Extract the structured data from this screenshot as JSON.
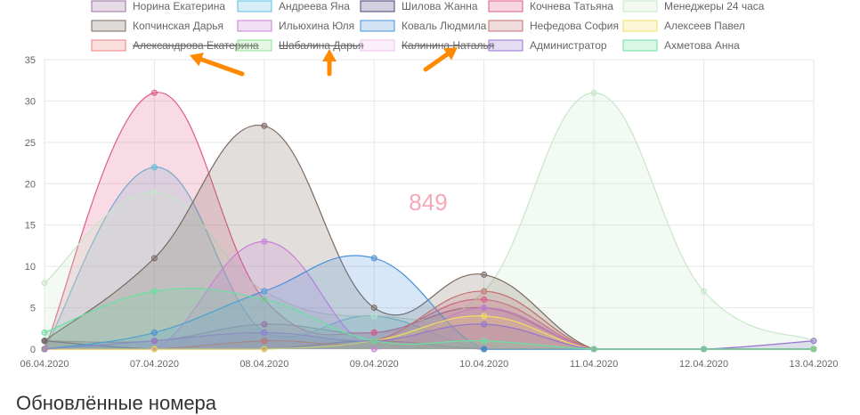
{
  "section_title": "Обновлённые номера",
  "chart_data": {
    "type": "area",
    "title": "",
    "xlabel": "",
    "ylabel": "",
    "ylim": [
      0,
      35
    ],
    "yticks": [
      0,
      5,
      10,
      15,
      20,
      25,
      30,
      35
    ],
    "grid": true,
    "legend_position": "top",
    "center_label": "849",
    "categories": [
      "06.04.2020",
      "07.04.2020",
      "08.04.2020",
      "09.04.2020",
      "10.04.2020",
      "11.04.2020",
      "12.04.2020",
      "13.04.2020"
    ],
    "series": [
      {
        "name": "Норина Екатерина",
        "hidden": false,
        "values": [
          1,
          1,
          3,
          2,
          5,
          0,
          0,
          0
        ],
        "color": "#9b6fa0"
      },
      {
        "name": "Андреева Яна",
        "hidden": false,
        "values": [
          0,
          22,
          2,
          4,
          0,
          0,
          0,
          0
        ],
        "color": "#5bc0de"
      },
      {
        "name": "Шилова Жанна",
        "hidden": false,
        "values": [
          1,
          0,
          0,
          1,
          0,
          0,
          0,
          0
        ],
        "color": "#4b3f7a"
      },
      {
        "name": "Кочнева Татьяна",
        "hidden": false,
        "values": [
          0,
          31,
          6,
          2,
          6,
          0,
          0,
          0
        ],
        "color": "#e05a8a"
      },
      {
        "name": "Менеджеры 24 часа",
        "hidden": false,
        "values": [
          8,
          19,
          7,
          4,
          7,
          31,
          7,
          1
        ],
        "color": "#c8e6c9"
      },
      {
        "name": "Копчинская Дарья",
        "hidden": false,
        "values": [
          1,
          11,
          27,
          5,
          9,
          0,
          0,
          0
        ],
        "color": "#7a6a60"
      },
      {
        "name": "Ильюхина Юля",
        "hidden": false,
        "values": [
          0,
          0,
          13,
          0,
          5,
          0,
          0,
          0
        ],
        "color": "#c97fd6"
      },
      {
        "name": "Коваль Людмила",
        "hidden": false,
        "values": [
          0,
          2,
          7,
          11,
          0,
          0,
          0,
          0
        ],
        "color": "#4a90d9"
      },
      {
        "name": "Нефедова София",
        "hidden": false,
        "values": [
          0,
          0,
          1,
          1,
          7,
          0,
          0,
          0
        ],
        "color": "#c07070"
      },
      {
        "name": "Алексеев Павел",
        "hidden": false,
        "values": [
          0,
          0,
          0,
          1,
          4,
          0,
          0,
          0
        ],
        "color": "#f0e060"
      },
      {
        "name": "Александрова Екатерина",
        "hidden": true,
        "values": [
          0,
          0,
          0,
          0,
          0,
          0,
          0,
          0
        ],
        "color": "#f08080"
      },
      {
        "name": "Шабалина Дарья",
        "hidden": true,
        "values": [
          0,
          0,
          0,
          0,
          0,
          0,
          0,
          0
        ],
        "color": "#90e090"
      },
      {
        "name": "Калинина Наталья",
        "hidden": true,
        "values": [
          0,
          0,
          0,
          0,
          0,
          0,
          0,
          0
        ],
        "color": "#f0c0f0"
      },
      {
        "name": "Администратор",
        "hidden": false,
        "values": [
          0,
          1,
          2,
          1,
          3,
          0,
          0,
          1
        ],
        "color": "#9575cd"
      },
      {
        "name": "Ахметова Анна",
        "hidden": false,
        "values": [
          2,
          7,
          6,
          1,
          1,
          0,
          0,
          0
        ],
        "color": "#69e0a0"
      }
    ]
  }
}
